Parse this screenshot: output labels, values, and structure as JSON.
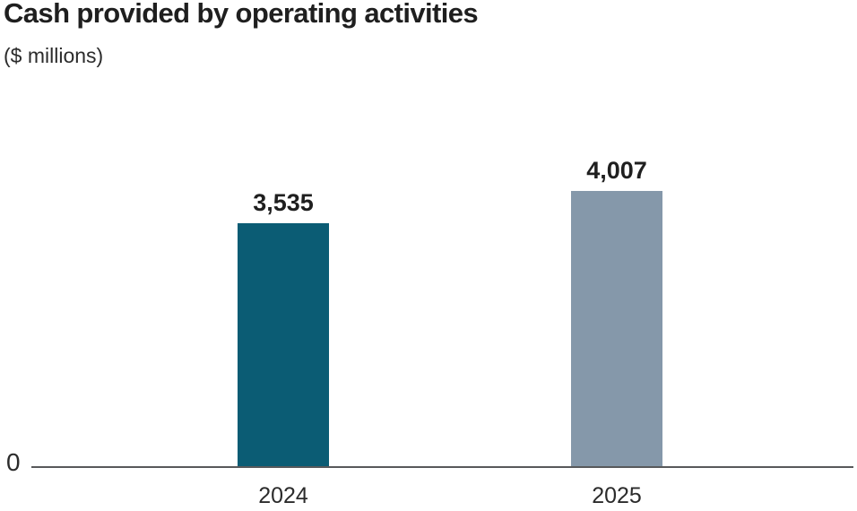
{
  "header": {
    "title": "Cash provided by operating activities",
    "subtitle": "($ millions)"
  },
  "chart_data": {
    "type": "bar",
    "title": "Cash provided by operating activities",
    "subtitle": "($ millions)",
    "categories": [
      "2024",
      "2025"
    ],
    "values": [
      3535,
      4007
    ],
    "value_labels": [
      "3,535",
      "4,007"
    ],
    "colors": [
      "#0b5c74",
      "#8598aa"
    ],
    "xlabel": "",
    "ylabel": "",
    "ylim": [
      0,
      5200
    ],
    "zero_label": "0",
    "grid": false,
    "legend": "none",
    "axis_color": "#58595b",
    "label_color": "#1f1f1f"
  }
}
